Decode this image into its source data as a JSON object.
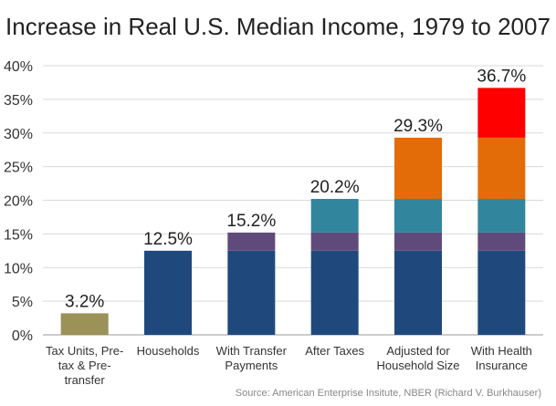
{
  "chart_data": {
    "type": "bar",
    "stacked": true,
    "title": "Increase in Real U.S. Median Income, 1979 to 2007",
    "source": "Source: American Enterprise Insitute, NBER (Richard V. Burkhauser)",
    "ylim": [
      0,
      40
    ],
    "yticks": [
      "0%",
      "5%",
      "10%",
      "15%",
      "20%",
      "25%",
      "30%",
      "35%",
      "40%"
    ],
    "ytick_values": [
      0,
      5,
      10,
      15,
      20,
      25,
      30,
      35,
      40
    ],
    "grid": true,
    "categories": [
      [
        "Tax Units, Pre-",
        "tax & Pre-",
        "transfer"
      ],
      [
        "Households"
      ],
      [
        "With Transfer",
        "Payments"
      ],
      [
        "After Taxes"
      ],
      [
        "Adjusted for",
        "Household Size"
      ],
      [
        "With Health",
        "Insurance"
      ]
    ],
    "totals": [
      3.2,
      12.5,
      15.2,
      20.2,
      29.3,
      36.7
    ],
    "total_labels": [
      "3.2%",
      "12.5%",
      "15.2%",
      "20.2%",
      "29.3%",
      "36.7%"
    ],
    "stacks": [
      [
        {
          "value": 3.2,
          "color": "#9a9257"
        }
      ],
      [
        {
          "value": 12.5,
          "color": "#1f497d"
        }
      ],
      [
        {
          "value": 12.5,
          "color": "#1f497d"
        },
        {
          "value": 2.7,
          "color": "#604a7b"
        }
      ],
      [
        {
          "value": 12.5,
          "color": "#1f497d"
        },
        {
          "value": 2.7,
          "color": "#604a7b"
        },
        {
          "value": 5.0,
          "color": "#31859c"
        }
      ],
      [
        {
          "value": 12.5,
          "color": "#1f497d"
        },
        {
          "value": 2.7,
          "color": "#604a7b"
        },
        {
          "value": 5.0,
          "color": "#31859c"
        },
        {
          "value": 9.1,
          "color": "#e36c09"
        }
      ],
      [
        {
          "value": 12.5,
          "color": "#1f497d"
        },
        {
          "value": 2.7,
          "color": "#604a7b"
        },
        {
          "value": 5.0,
          "color": "#31859c"
        },
        {
          "value": 9.1,
          "color": "#e36c09"
        },
        {
          "value": 7.4,
          "color": "#ff0000"
        }
      ]
    ]
  }
}
